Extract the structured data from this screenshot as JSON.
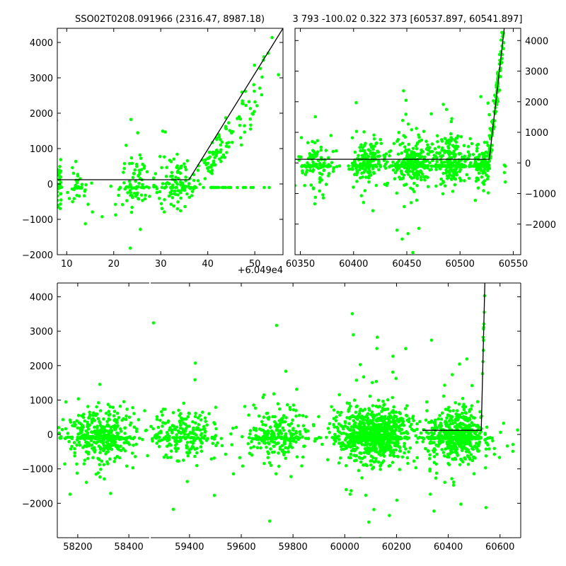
{
  "chart_data": [
    {
      "id": "top-left",
      "type": "scatter",
      "title": "SSO02T0208.091966 (2316.47, 8987.18)",
      "x_offset_label": "+6.049e4",
      "xlim": [
        8,
        56
      ],
      "ylim": [
        -2000,
        4400
      ],
      "xticks": [
        10,
        20,
        30,
        40,
        50
      ],
      "yticks": [
        -2000,
        -1000,
        0,
        1000,
        2000,
        3000,
        4000
      ],
      "y_tick_side": "left",
      "point_color": "#00ff00",
      "fit_line": {
        "x": [
          8,
          36,
          56
        ],
        "y": [
          120,
          120,
          4400
        ]
      },
      "clusters": [
        {
          "center": 8.3,
          "spread": 0.4,
          "count": 40
        },
        {
          "center": 12.3,
          "spread": 1.2,
          "count": 35
        },
        {
          "center": 24.5,
          "spread": 2.0,
          "count": 90
        },
        {
          "center": 33.0,
          "spread": 2.3,
          "count": 110
        },
        {
          "center": 41.5,
          "spread": 2.3,
          "count": 90
        },
        {
          "center": 49.5,
          "spread": 2.0,
          "count": 40
        }
      ]
    },
    {
      "id": "top-right",
      "type": "scatter",
      "title": "3 793 -100.02 0.322 373 [60537.897, 60541.897]",
      "xlim": [
        60345,
        60557
      ],
      "ylim": [
        -3000,
        4400
      ],
      "xticks": [
        60350,
        60400,
        60450,
        60500,
        60550
      ],
      "yticks": [
        -2000,
        -1000,
        0,
        1000,
        2000,
        3000,
        4000
      ],
      "y_tick_side": "right",
      "point_color": "#00ff00",
      "fit_line": {
        "x": [
          60345,
          60527.5,
          60541.5
        ],
        "y": [
          120,
          120,
          4400
        ]
      },
      "clusters": [
        {
          "center": 60365,
          "spread": 9,
          "count": 120
        },
        {
          "center": 60412,
          "spread": 8,
          "count": 190
        },
        {
          "center": 60455,
          "spread": 10,
          "count": 290
        },
        {
          "center": 60492,
          "spread": 8,
          "count": 230
        },
        {
          "center": 60525,
          "spread": 6,
          "count": 170
        },
        {
          "center": 60537,
          "spread": 3,
          "count": 50
        }
      ]
    },
    {
      "id": "bottom",
      "type": "scatter",
      "xlim": [
        58120,
        60680
      ],
      "ylim": [
        -3000,
        4400
      ],
      "x_break": {
        "from": 58480,
        "to": 59250
      },
      "xticks": [
        58200,
        58400,
        59400,
        59600,
        59800,
        60000,
        60200,
        60400,
        60600
      ],
      "yticks": [
        -2000,
        -1000,
        0,
        1000,
        2000,
        3000,
        4000
      ],
      "y_tick_side": "left",
      "point_color": "#00ff00",
      "fit_line": {
        "x": [
          60300,
          60527.5,
          60541.5
        ],
        "y": [
          120,
          120,
          4400
        ]
      },
      "clusters": [
        {
          "center": 58290,
          "spread": 75,
          "count": 420
        },
        {
          "center": 59380,
          "spread": 70,
          "count": 240
        },
        {
          "center": 59745,
          "spread": 60,
          "count": 260
        },
        {
          "center": 60110,
          "spread": 70,
          "count": 900
        },
        {
          "center": 60435,
          "spread": 65,
          "count": 580
        }
      ]
    }
  ]
}
